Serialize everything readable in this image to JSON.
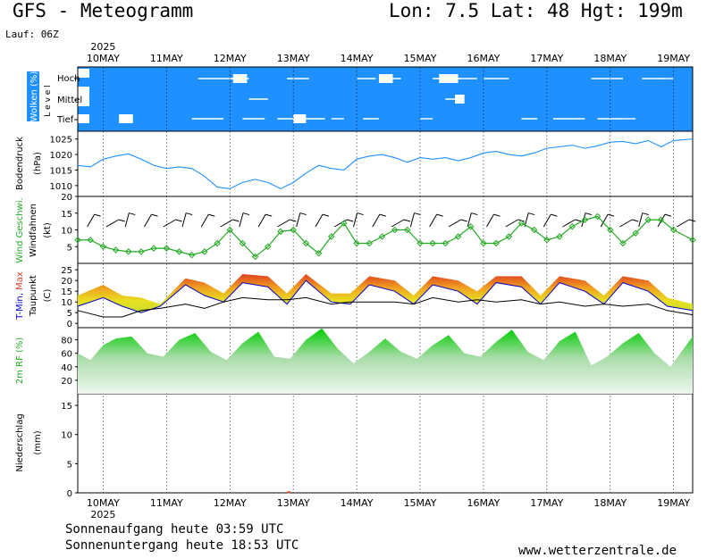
{
  "header": {
    "title": "GFS - Meteogramm",
    "coords": "Lon: 7.5 Lat: 48 Hgt: 199m",
    "run": "Lauf: 06Z"
  },
  "footer": {
    "sunrise": "Sonnenaufgang heute 03:59 UTC",
    "sunset": "Sonnenuntergang heute 18:53 UTC",
    "source": "www.wetterzentrale.de"
  },
  "colors": {
    "cloud_bg": "#1e90ff",
    "pressure": "#1e90ff",
    "wind": "#22aa22",
    "tmax": "#e04020",
    "tmin": "#0000cc",
    "rh_fill": "#22cc22"
  },
  "chart_data": {
    "type": "line",
    "x_unit": "days (Mai 2025)",
    "year_label": "2025",
    "dates": [
      "10MAY",
      "11MAY",
      "12MAY",
      "13MAY",
      "14MAY",
      "15MAY",
      "16MAY",
      "17MAY",
      "18MAY",
      "19MAY"
    ],
    "x_range": [
      9.6,
      19.3
    ],
    "panels": [
      {
        "id": "cloud",
        "ylabel": "Wolken (%)",
        "sublabel": "L e v e l",
        "levels": [
          "Hoch",
          "Mittel",
          "Tief"
        ],
        "gaps": [
          {
            "level": "high",
            "x": 11.5,
            "w": 0.55
          },
          {
            "level": "high",
            "x": 12.9,
            "w": 0.35
          },
          {
            "level": "high",
            "x": 14.0,
            "w": 0.3
          },
          {
            "level": "high",
            "x": 14.4,
            "w": 0.3
          },
          {
            "level": "high",
            "x": 15.2,
            "w": 0.4
          },
          {
            "level": "high",
            "x": 16.0,
            "w": 0.4
          },
          {
            "level": "high",
            "x": 17.7,
            "w": 0.5
          },
          {
            "level": "high",
            "x": 18.5,
            "w": 0.35
          },
          {
            "level": "high",
            "x": 12.0,
            "w": 0.3
          },
          {
            "level": "high",
            "x": 15.5,
            "w": 0.4
          },
          {
            "level": "high",
            "x": 18.8,
            "w": 0.2
          },
          {
            "level": "mid",
            "x": 12.3,
            "w": 0.3
          },
          {
            "level": "mid",
            "x": 15.4,
            "w": 0.25
          },
          {
            "level": "low",
            "x": 11.4,
            "w": 0.5
          },
          {
            "level": "low",
            "x": 12.2,
            "w": 0.35
          },
          {
            "level": "low",
            "x": 12.75,
            "w": 0.3
          },
          {
            "level": "low",
            "x": 13.2,
            "w": 0.3
          },
          {
            "level": "low",
            "x": 13.6,
            "w": 0.2
          },
          {
            "level": "low",
            "x": 14.1,
            "w": 0.25
          },
          {
            "level": "low",
            "x": 15.0,
            "w": 0.2
          },
          {
            "level": "low",
            "x": 16.6,
            "w": 0.25
          },
          {
            "level": "low",
            "x": 17.1,
            "w": 0.5
          },
          {
            "level": "low",
            "x": 17.8,
            "w": 0.4
          },
          {
            "level": "low",
            "x": 18.2,
            "w": 0.2
          }
        ],
        "blobs": [
          {
            "level": "high",
            "x": 12.05,
            "w": 0.22
          },
          {
            "level": "high",
            "x": 14.35,
            "w": 0.22
          },
          {
            "level": "high",
            "x": 15.3,
            "w": 0.3
          },
          {
            "level": "mid",
            "x": 15.55,
            "w": 0.15
          },
          {
            "level": "low",
            "x": 10.25,
            "w": 0.22
          },
          {
            "level": "low",
            "x": 13.0,
            "w": 0.2
          }
        ]
      },
      {
        "id": "pressure",
        "ylabel": "Bodendruck",
        "unit": "(hPa)",
        "ylim": [
          1006.5,
          1027.5
        ],
        "ticks": [
          1010,
          1015,
          1020,
          1025
        ],
        "series": [
          {
            "x": [
              9.6,
              9.8,
              10.0,
              10.2,
              10.4,
              10.6,
              10.8,
              11.0,
              11.2,
              11.4,
              11.6,
              11.8,
              12.0,
              12.2,
              12.4,
              12.6,
              12.8,
              13.0,
              13.2,
              13.4,
              13.6,
              13.8,
              14.0,
              14.2,
              14.4,
              14.6,
              14.8,
              15.0,
              15.2,
              15.4,
              15.6,
              15.8,
              16.0,
              16.2,
              16.4,
              16.6,
              16.8,
              17.0,
              17.2,
              17.4,
              17.6,
              17.8,
              18.0,
              18.2,
              18.4,
              18.6,
              18.8,
              19.0,
              19.3
            ],
            "y": [
              1016.5,
              1016,
              1018.5,
              1019.5,
              1020.2,
              1018.5,
              1016.5,
              1015.5,
              1016,
              1015.5,
              1013,
              1009.5,
              1009,
              1011,
              1012,
              1011,
              1009,
              1011,
              1014,
              1016.5,
              1015.5,
              1015,
              1018.5,
              1019.5,
              1020,
              1019,
              1017.5,
              1019,
              1018.5,
              1019,
              1018,
              1019,
              1020.5,
              1021,
              1020,
              1019.5,
              1020.5,
              1022,
              1022.5,
              1023,
              1022,
              1022.8,
              1024,
              1024.2,
              1023.5,
              1024.5,
              1022.5,
              1024.5,
              1025
            ]
          }
        ]
      },
      {
        "id": "wind",
        "ylabel_colored": "Wind Geschwi.",
        "ylabel": "Windfahnen",
        "unit": "(kt)",
        "ylim": [
          0,
          20
        ],
        "ticks": [
          5,
          10,
          15,
          20
        ],
        "series": [
          {
            "name": "Wind Geschwi.",
            "x": [
              9.6,
              9.8,
              10.0,
              10.2,
              10.4,
              10.6,
              10.8,
              11.0,
              11.2,
              11.4,
              11.6,
              11.8,
              12.0,
              12.2,
              12.4,
              12.6,
              12.8,
              13.0,
              13.2,
              13.4,
              13.6,
              13.8,
              14.0,
              14.2,
              14.4,
              14.6,
              14.8,
              15.0,
              15.2,
              15.4,
              15.6,
              15.8,
              16.0,
              16.2,
              16.4,
              16.6,
              16.8,
              17.0,
              17.2,
              17.4,
              17.6,
              17.8,
              18.0,
              18.2,
              18.4,
              18.6,
              18.8,
              19.0,
              19.3
            ],
            "y": [
              7,
              7,
              5,
              4,
              3.5,
              3.5,
              4.5,
              4.5,
              3.5,
              2.5,
              3.5,
              6,
              10,
              6,
              2,
              5,
              9.5,
              10,
              6,
              3,
              8,
              12,
              6,
              6,
              8,
              10,
              10,
              6,
              6,
              6,
              8,
              11,
              6,
              6,
              8,
              12,
              10,
              7,
              8,
              11,
              13,
              14,
              10,
              6,
              9,
              13,
              13,
              10,
              7
            ]
          }
        ],
        "barbs_x": [
          9.75,
          10.05,
          10.35,
          10.65,
          10.95,
          11.25,
          11.55,
          11.85,
          12.15,
          12.45,
          12.75,
          13.05,
          13.35,
          13.65,
          13.95,
          14.25,
          14.55,
          14.85,
          15.15,
          15.45,
          15.75,
          16.05,
          16.35,
          16.65,
          16.95,
          17.25,
          17.55,
          17.85,
          18.15,
          18.45,
          18.75,
          19.05
        ]
      },
      {
        "id": "temp",
        "ylabel_colored": "T-Min, Max",
        "ylabel": "Taupunkt",
        "unit": "(C)",
        "ylim": [
          -2,
          28
        ],
        "ticks": [
          0,
          5,
          10,
          15,
          20,
          25
        ],
        "series": [
          {
            "name": "Max",
            "x": [
              9.6,
              10.0,
              10.3,
              10.6,
              10.9,
              11.3,
              11.6,
              11.9,
              12.2,
              12.6,
              12.9,
              13.2,
              13.6,
              13.9,
              14.2,
              14.6,
              14.9,
              15.2,
              15.6,
              15.9,
              16.2,
              16.6,
              16.9,
              17.2,
              17.6,
              17.9,
              18.2,
              18.6,
              18.9,
              19.3
            ],
            "y": [
              13,
              18,
              13,
              12,
              9,
              21,
              19,
              14,
              23,
              22,
              14,
              23,
              14,
              14,
              22,
              20,
              13,
              22,
              20,
              15,
              22,
              22,
              13,
              22,
              20,
              13,
              22,
              20,
              12,
              9
            ]
          },
          {
            "name": "Min",
            "x": [
              9.6,
              10.0,
              10.3,
              10.6,
              10.9,
              11.3,
              11.6,
              11.9,
              12.2,
              12.6,
              12.9,
              13.2,
              13.6,
              13.9,
              14.2,
              14.6,
              14.9,
              15.2,
              15.6,
              15.9,
              16.2,
              16.6,
              16.9,
              17.2,
              17.6,
              17.9,
              18.2,
              18.6,
              18.9,
              19.3
            ],
            "y": [
              8,
              12,
              8,
              5,
              8,
              18,
              13,
              10,
              19,
              17,
              9,
              20,
              10,
              9,
              18,
              15,
              9,
              18,
              15,
              9,
              19,
              17,
              9,
              19,
              15,
              9,
              19,
              15,
              8,
              6
            ]
          },
          {
            "name": "Taupunkt",
            "x": [
              9.6,
              10.0,
              10.3,
              10.6,
              10.9,
              11.3,
              11.6,
              11.9,
              12.2,
              12.6,
              12.9,
              13.2,
              13.6,
              13.9,
              14.2,
              14.6,
              14.9,
              15.2,
              15.6,
              15.9,
              16.2,
              16.6,
              16.9,
              17.2,
              17.6,
              17.9,
              18.2,
              18.6,
              18.9,
              19.3
            ],
            "y": [
              6,
              3,
              3,
              6,
              7,
              9,
              7,
              10,
              12,
              11,
              11,
              12,
              9,
              10,
              10,
              10,
              9,
              12,
              10,
              11,
              10,
              11,
              9,
              10,
              8,
              9,
              8,
              9,
              6,
              4
            ]
          }
        ]
      },
      {
        "id": "rh",
        "ylabel": "2m RF (%)",
        "ylim": [
          0,
          98
        ],
        "ticks": [
          20,
          40,
          60,
          80
        ],
        "series": [
          {
            "name": "2m RF",
            "x": [
              9.6,
              9.8,
              10.0,
              10.2,
              10.45,
              10.7,
              10.95,
              11.2,
              11.45,
              11.7,
              11.95,
              12.2,
              12.45,
              12.7,
              12.95,
              13.2,
              13.45,
              13.7,
              13.95,
              14.2,
              14.45,
              14.7,
              14.95,
              15.2,
              15.45,
              15.7,
              15.95,
              16.2,
              16.45,
              16.7,
              16.95,
              17.2,
              17.45,
              17.7,
              17.95,
              18.2,
              18.45,
              18.7,
              18.95,
              19.3
            ],
            "y": [
              60,
              50,
              72,
              82,
              85,
              60,
              55,
              80,
              90,
              62,
              50,
              75,
              92,
              55,
              52,
              80,
              97,
              67,
              45,
              62,
              82,
              62,
              52,
              72,
              87,
              60,
              55,
              77,
              95,
              62,
              50,
              78,
              92,
              42,
              55,
              75,
              90,
              60,
              40,
              85
            ]
          }
        ]
      },
      {
        "id": "precip",
        "ylabel": "Niederschlag",
        "unit": "(mm)",
        "ylim": [
          0,
          17
        ],
        "ticks": [
          0,
          5,
          10,
          15
        ],
        "values": [
          {
            "x": 12.9,
            "y": 0.1
          }
        ]
      }
    ]
  }
}
